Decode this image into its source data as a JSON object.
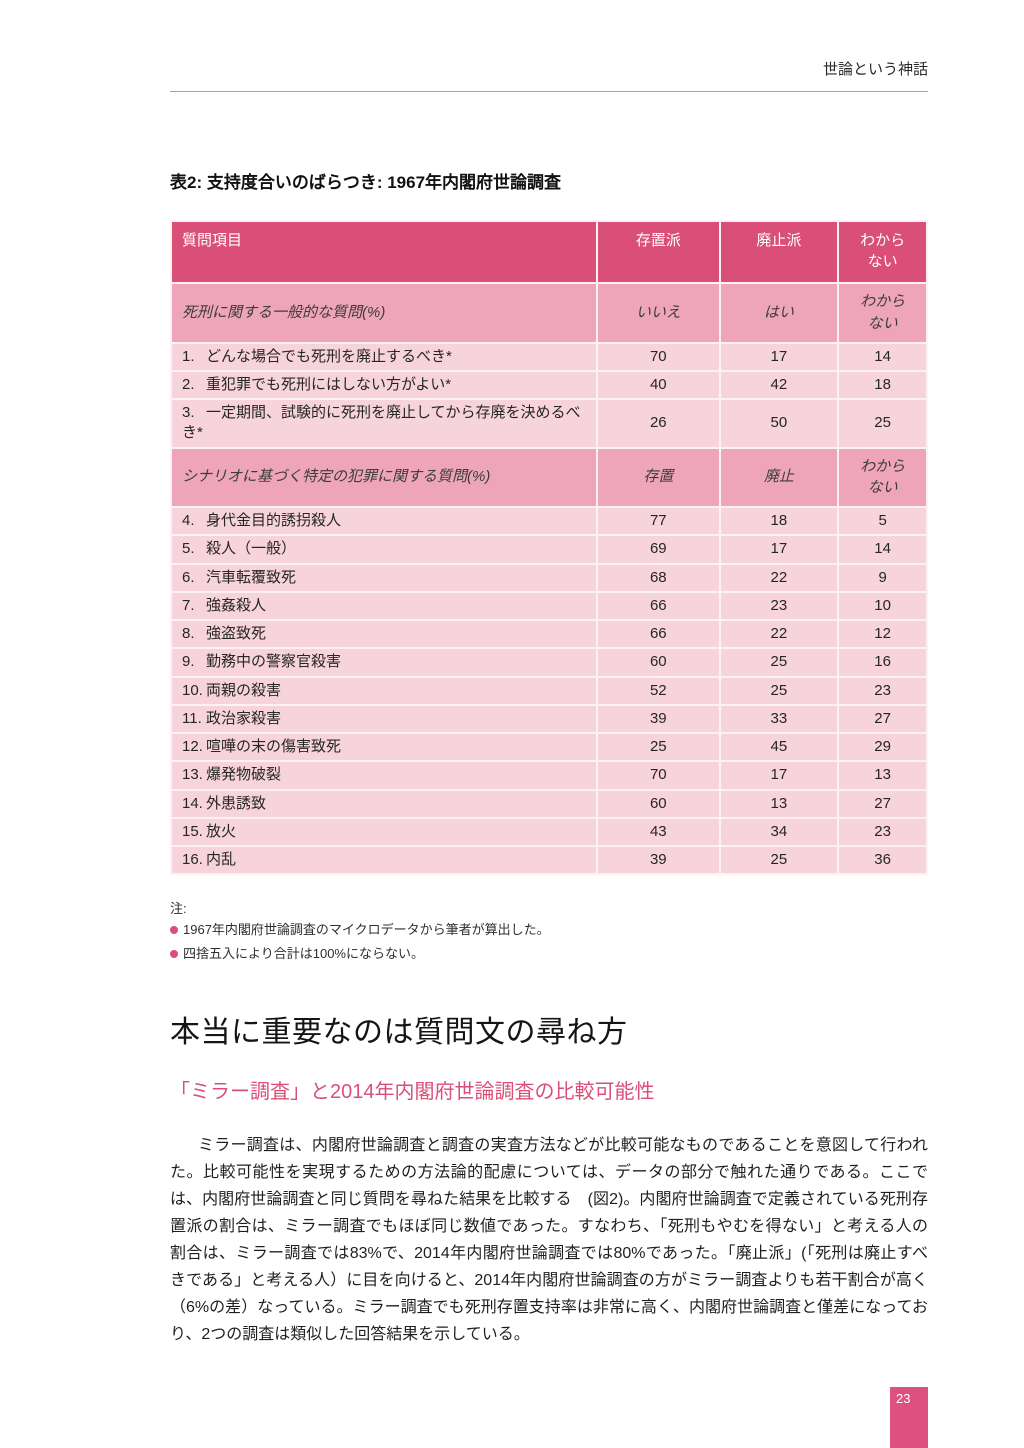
{
  "page": {
    "running_header": "世論という神話",
    "page_number": "23"
  },
  "table": {
    "caption": "表2: 支持度合いのばらつき: 1967年内閣府世論調査",
    "columns": [
      "質問項目",
      "存置派",
      "廃止派",
      "わから\nない"
    ],
    "sections": [
      {
        "subheader": {
          "label": "死刑に関する一般的な質問(%)",
          "cols": [
            "いいえ",
            "はい",
            "わから\nない"
          ]
        },
        "rows": [
          {
            "num": "1.",
            "label": "どんな場合でも死刑を廃止するべき*",
            "values": [
              70,
              17,
              14
            ]
          },
          {
            "num": "2.",
            "label": "重犯罪でも死刑にはしない方がよい*",
            "values": [
              40,
              42,
              18
            ]
          },
          {
            "num": "3.",
            "label": "一定期間、試験的に死刑を廃止してから存廃を決めるべき*",
            "values": [
              26,
              50,
              25
            ]
          }
        ]
      },
      {
        "subheader": {
          "label": "シナリオに基づく特定の犯罪に関する質問(%)",
          "cols": [
            "存置",
            "廃止",
            "わから\nない"
          ]
        },
        "rows": [
          {
            "num": "4.",
            "label": "身代金目的誘拐殺人",
            "values": [
              77,
              18,
              5
            ]
          },
          {
            "num": "5.",
            "label": "殺人（一般）",
            "values": [
              69,
              17,
              14
            ]
          },
          {
            "num": "6.",
            "label": "汽車転覆致死",
            "values": [
              68,
              22,
              9
            ]
          },
          {
            "num": "7.",
            "label": "強姦殺人",
            "values": [
              66,
              23,
              10
            ]
          },
          {
            "num": "8.",
            "label": "強盗致死",
            "values": [
              66,
              22,
              12
            ]
          },
          {
            "num": "9.",
            "label": "勤務中の警察官殺害",
            "values": [
              60,
              25,
              16
            ]
          },
          {
            "num": "10.",
            "label": "両親の殺害",
            "values": [
              52,
              25,
              23
            ]
          },
          {
            "num": "11.",
            "label": "政治家殺害",
            "values": [
              39,
              33,
              27
            ]
          },
          {
            "num": "12.",
            "label": "喧嘩の末の傷害致死",
            "values": [
              25,
              45,
              29
            ]
          },
          {
            "num": "13.",
            "label": "爆発物破裂",
            "values": [
              70,
              17,
              13
            ]
          },
          {
            "num": "14.",
            "label": "外患誘致",
            "values": [
              60,
              13,
              27
            ]
          },
          {
            "num": "15.",
            "label": "放火",
            "values": [
              43,
              34,
              23
            ]
          },
          {
            "num": "16.",
            "label": "内乱",
            "values": [
              39,
              25,
              36
            ]
          }
        ]
      }
    ]
  },
  "notes": {
    "label": "注:",
    "items": [
      "1967年内閣府世論調査のマイクロデータから筆者が算出した。",
      "四捨五入により合計は100%にならない。"
    ]
  },
  "section": {
    "heading": "本当に重要なのは質問文の尋ね方",
    "subheading": "「ミラー調査」と2014年内閣府世論調査の比較可能性",
    "paragraph": "ミラー調査は、内閣府世論調査と調査の実査方法などが比較可能なものであることを意図して行われた。比較可能性を実現するための方法論的配慮については、データの部分で触れた通りである。ここでは、内閣府世論調査と同じ質問を尋ねた結果を比較する　(図2)。内閣府世論調査で定義されている死刑存置派の割合は、ミラー調査でもほぼ同じ数値であった。すなわち、「死刑もやむを得ない」と考える人の割合は、ミラー調査では83%で、2014年内閣府世論調査では80%であった。「廃止派」(「死刑は廃止すべきである」と考える人）に目を向けると、2014年内閣府世論調査の方がミラー調査よりも若干割合が高く（6%の差）なっている。ミラー調査でも死刑存置支持率は非常に高く、内閣府世論調査と僅差になっており、2つの調査は類似した回答結果を示している。"
  },
  "colors": {
    "accent": "#d94f78",
    "table_header_bg": "#d94f78",
    "table_subheader_bg": "#efa5b9",
    "table_row_bg": "#f7d3dc",
    "page_box_bg": "#dd5181",
    "header_rule": "#d98aa4"
  }
}
